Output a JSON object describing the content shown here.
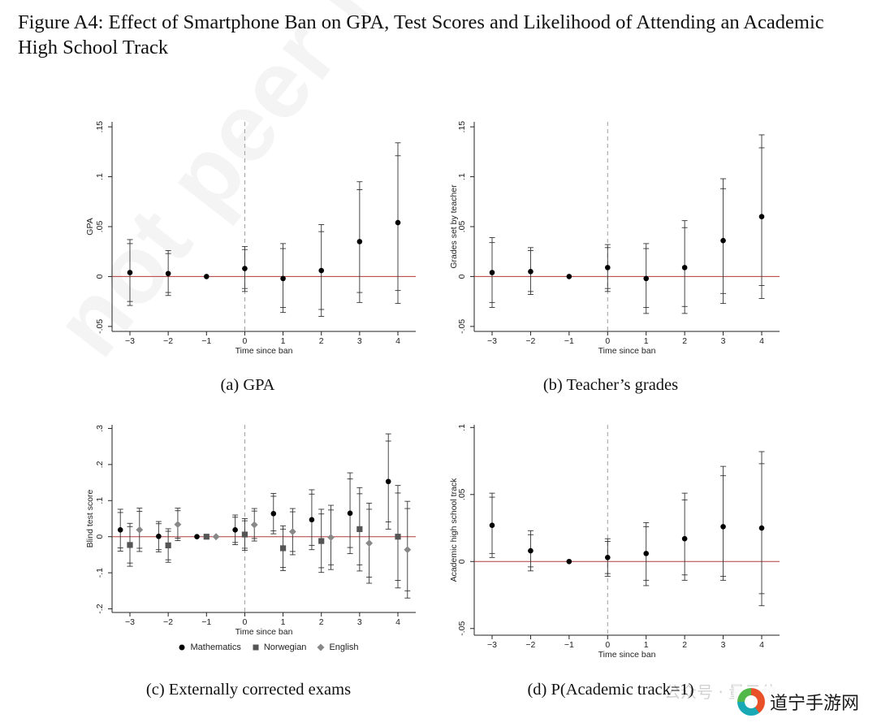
{
  "figure": {
    "title": "Figure A4: Effect of Smartphone Ban on GPA, Test Scores and Likelihood of Attending an Academic High School Track"
  },
  "watermark": "not peer review",
  "wechat_mark": "公众号 · 量子位",
  "brand": {
    "text": "道宁手游网"
  },
  "legend": {
    "items": [
      {
        "label": "Mathematics",
        "marker": "circle",
        "color": "#000000"
      },
      {
        "label": "Norwegian",
        "marker": "square",
        "color": "#555555"
      },
      {
        "label": "English",
        "marker": "diamond",
        "color": "#888888"
      }
    ]
  },
  "colors": {
    "zero_line": "#b03a3a",
    "ban_line": "#a0a0a0",
    "ci": "#333333"
  },
  "chart_data": [
    {
      "id": "a",
      "type": "scatter",
      "caption": "(a) GPA",
      "xlabel": "Time since ban",
      "ylabel": "GPA",
      "x_ticks": [
        -3,
        -2,
        -1,
        0,
        1,
        2,
        3,
        4
      ],
      "x_tick_labels": [
        "−3",
        "−2",
        "−1",
        "0",
        "1",
        "2",
        "3",
        "4"
      ],
      "y_ticks": [
        -0.05,
        0,
        0.05,
        0.1,
        0.15
      ],
      "y_tick_labels": [
        "-.05",
        "0",
        ".05",
        ".1",
        ".15"
      ],
      "ylim": [
        -0.055,
        0.155
      ],
      "xlim": [
        -3.5,
        4.5
      ],
      "series": [
        {
          "marker": "circle",
          "color": "#000000",
          "offset": 0,
          "points": [
            {
              "x": -3,
              "y": 0.004,
              "ci95": [
                -0.029,
                0.037
              ],
              "ci90": [
                -0.025,
                0.033
              ]
            },
            {
              "x": -2,
              "y": 0.003,
              "ci95": [
                -0.019,
                0.026
              ],
              "ci90": [
                -0.016,
                0.023
              ]
            },
            {
              "x": -1,
              "y": 0.0
            },
            {
              "x": 0,
              "y": 0.008,
              "ci95": [
                -0.015,
                0.03
              ],
              "ci90": [
                -0.012,
                0.027
              ]
            },
            {
              "x": 1,
              "y": -0.002,
              "ci95": [
                -0.036,
                0.033
              ],
              "ci90": [
                -0.031,
                0.028
              ]
            },
            {
              "x": 2,
              "y": 0.006,
              "ci95": [
                -0.04,
                0.052
              ],
              "ci90": [
                -0.033,
                0.045
              ]
            },
            {
              "x": 3,
              "y": 0.035,
              "ci95": [
                -0.026,
                0.095
              ],
              "ci90": [
                -0.016,
                0.087
              ]
            },
            {
              "x": 4,
              "y": 0.054,
              "ci95": [
                -0.027,
                0.134
              ],
              "ci90": [
                -0.014,
                0.121
              ]
            }
          ]
        }
      ]
    },
    {
      "id": "b",
      "type": "scatter",
      "caption": "(b) Teacher’s grades",
      "xlabel": "Time since ban",
      "ylabel": "Grades set by teacher",
      "x_ticks": [
        -3,
        -2,
        -1,
        0,
        1,
        2,
        3,
        4
      ],
      "x_tick_labels": [
        "−3",
        "−2",
        "−1",
        "0",
        "1",
        "2",
        "3",
        "4"
      ],
      "y_ticks": [
        -0.05,
        0,
        0.05,
        0.1,
        0.15
      ],
      "y_tick_labels": [
        "-.05",
        "0",
        ".05",
        ".1",
        ".15"
      ],
      "ylim": [
        -0.055,
        0.155
      ],
      "xlim": [
        -3.5,
        4.5
      ],
      "series": [
        {
          "marker": "circle",
          "color": "#000000",
          "offset": 0,
          "points": [
            {
              "x": -3,
              "y": 0.004,
              "ci95": [
                -0.031,
                0.039
              ],
              "ci90": [
                -0.026,
                0.034
              ]
            },
            {
              "x": -2,
              "y": 0.005,
              "ci95": [
                -0.018,
                0.029
              ],
              "ci90": [
                -0.015,
                0.026
              ]
            },
            {
              "x": -1,
              "y": 0.0
            },
            {
              "x": 0,
              "y": 0.009,
              "ci95": [
                -0.015,
                0.032
              ],
              "ci90": [
                -0.012,
                0.029
              ]
            },
            {
              "x": 1,
              "y": -0.002,
              "ci95": [
                -0.037,
                0.033
              ],
              "ci90": [
                -0.031,
                0.028
              ]
            },
            {
              "x": 2,
              "y": 0.009,
              "ci95": [
                -0.037,
                0.056
              ],
              "ci90": [
                -0.03,
                0.049
              ]
            },
            {
              "x": 3,
              "y": 0.036,
              "ci95": [
                -0.027,
                0.098
              ],
              "ci90": [
                -0.017,
                0.088
              ]
            },
            {
              "x": 4,
              "y": 0.06,
              "ci95": [
                -0.022,
                0.142
              ],
              "ci90": [
                -0.009,
                0.129
              ]
            }
          ]
        }
      ]
    },
    {
      "id": "c",
      "type": "scatter",
      "caption": "(c) Externally corrected exams",
      "xlabel": "Time since ban",
      "ylabel": "Blind test score",
      "x_ticks": [
        -3,
        -2,
        -1,
        0,
        1,
        2,
        3,
        4
      ],
      "x_tick_labels": [
        "−3",
        "−2",
        "−1",
        "0",
        "1",
        "2",
        "3",
        "4"
      ],
      "y_ticks": [
        -0.2,
        -0.1,
        0,
        0.1,
        0.2,
        0.3
      ],
      "y_tick_labels": [
        "-.2",
        "-.1",
        "0",
        ".1",
        ".2",
        ".3"
      ],
      "ylim": [
        -0.21,
        0.31
      ],
      "xlim": [
        -3.5,
        4.5
      ],
      "series": [
        {
          "name": "Mathematics",
          "marker": "circle",
          "color": "#000000",
          "offset": -0.25,
          "points": [
            {
              "x": -3,
              "y": 0.019,
              "ci95": [
                -0.04,
                0.076
              ],
              "ci90": [
                -0.031,
                0.067
              ]
            },
            {
              "x": -2,
              "y": 0.001,
              "ci95": [
                -0.042,
                0.042
              ],
              "ci90": [
                -0.036,
                0.036
              ]
            },
            {
              "x": -1,
              "y": 0.0
            },
            {
              "x": 0,
              "y": 0.019,
              "ci95": [
                -0.022,
                0.06
              ],
              "ci90": [
                -0.016,
                0.054
              ]
            },
            {
              "x": 1,
              "y": 0.064,
              "ci95": [
                0.008,
                0.12
              ],
              "ci90": [
                0.016,
                0.112
              ]
            },
            {
              "x": 2,
              "y": 0.047,
              "ci95": [
                -0.036,
                0.13
              ],
              "ci90": [
                -0.024,
                0.118
              ]
            },
            {
              "x": 3,
              "y": 0.065,
              "ci95": [
                -0.047,
                0.177
              ],
              "ci90": [
                -0.03,
                0.16
              ]
            },
            {
              "x": 4,
              "y": 0.153,
              "ci95": [
                0.021,
                0.285
              ],
              "ci90": [
                0.041,
                0.265
              ]
            }
          ]
        },
        {
          "name": "Norwegian",
          "marker": "square",
          "color": "#555555",
          "offset": 0,
          "points": [
            {
              "x": -3,
              "y": -0.023,
              "ci95": [
                -0.082,
                0.037
              ],
              "ci90": [
                -0.073,
                0.028
              ]
            },
            {
              "x": -2,
              "y": -0.024,
              "ci95": [
                -0.071,
                0.022
              ],
              "ci90": [
                -0.064,
                0.015
              ]
            },
            {
              "x": -1,
              "y": 0.0
            },
            {
              "x": 0,
              "y": 0.006,
              "ci95": [
                -0.038,
                0.05
              ],
              "ci90": [
                -0.032,
                0.044
              ]
            },
            {
              "x": 1,
              "y": -0.032,
              "ci95": [
                -0.094,
                0.03
              ],
              "ci90": [
                -0.085,
                0.021
              ]
            },
            {
              "x": 2,
              "y": -0.012,
              "ci95": [
                -0.099,
                0.076
              ],
              "ci90": [
                -0.086,
                0.063
              ]
            },
            {
              "x": 3,
              "y": 0.021,
              "ci95": [
                -0.095,
                0.136
              ],
              "ci90": [
                -0.078,
                0.119
              ]
            },
            {
              "x": 4,
              "y": 0.0,
              "ci95": [
                -0.142,
                0.142
              ],
              "ci90": [
                -0.121,
                0.121
              ]
            }
          ]
        },
        {
          "name": "English",
          "marker": "diamond",
          "color": "#888888",
          "offset": 0.25,
          "points": [
            {
              "x": -3,
              "y": 0.019,
              "ci95": [
                -0.041,
                0.079
              ],
              "ci90": [
                -0.032,
                0.07
              ]
            },
            {
              "x": -2,
              "y": 0.034,
              "ci95": [
                -0.011,
                0.079
              ],
              "ci90": [
                -0.004,
                0.072
              ]
            },
            {
              "x": -1,
              "y": 0.0
            },
            {
              "x": 0,
              "y": 0.033,
              "ci95": [
                -0.012,
                0.078
              ],
              "ci90": [
                -0.005,
                0.071
              ]
            },
            {
              "x": 1,
              "y": 0.014,
              "ci95": [
                -0.05,
                0.078
              ],
              "ci90": [
                -0.041,
                0.069
              ]
            },
            {
              "x": 2,
              "y": -0.002,
              "ci95": [
                -0.091,
                0.087
              ],
              "ci90": [
                -0.078,
                0.074
              ]
            },
            {
              "x": 3,
              "y": -0.018,
              "ci95": [
                -0.129,
                0.093
              ],
              "ci90": [
                -0.112,
                0.076
              ]
            },
            {
              "x": 4,
              "y": -0.036,
              "ci95": [
                -0.17,
                0.098
              ],
              "ci90": [
                -0.15,
                0.078
              ]
            }
          ]
        }
      ]
    },
    {
      "id": "d",
      "type": "scatter",
      "caption": "(d) P(Academic track=1)",
      "xlabel": "Time since ban",
      "ylabel": "Academic high school track",
      "x_ticks": [
        -3,
        -2,
        -1,
        0,
        1,
        2,
        3,
        4
      ],
      "x_tick_labels": [
        "−3",
        "−2",
        "−1",
        "0",
        "1",
        "2",
        "3",
        "4"
      ],
      "y_ticks": [
        -0.05,
        0,
        0.05,
        0.1
      ],
      "y_tick_labels": [
        "-.05",
        "0",
        ".05",
        ".1"
      ],
      "ylim": [
        -0.055,
        0.102
      ],
      "xlim": [
        -3.5,
        4.5
      ],
      "series": [
        {
          "marker": "circle",
          "color": "#000000",
          "offset": 0,
          "points": [
            {
              "x": -3,
              "y": 0.027,
              "ci95": [
                0.003,
                0.051
              ],
              "ci90": [
                0.006,
                0.048
              ]
            },
            {
              "x": -2,
              "y": 0.008,
              "ci95": [
                -0.007,
                0.023
              ],
              "ci90": [
                -0.004,
                0.02
              ]
            },
            {
              "x": -1,
              "y": 0.0
            },
            {
              "x": 0,
              "y": 0.003,
              "ci95": [
                -0.011,
                0.017
              ],
              "ci90": [
                -0.009,
                0.015
              ]
            },
            {
              "x": 1,
              "y": 0.006,
              "ci95": [
                -0.018,
                0.029
              ],
              "ci90": [
                -0.014,
                0.026
              ]
            },
            {
              "x": 2,
              "y": 0.017,
              "ci95": [
                -0.014,
                0.051
              ],
              "ci90": [
                -0.01,
                0.046
              ]
            },
            {
              "x": 3,
              "y": 0.026,
              "ci95": [
                -0.014,
                0.071
              ],
              "ci90": [
                -0.011,
                0.064
              ]
            },
            {
              "x": 4,
              "y": 0.025,
              "ci95": [
                -0.033,
                0.082
              ],
              "ci90": [
                -0.024,
                0.073
              ]
            }
          ]
        }
      ]
    }
  ]
}
